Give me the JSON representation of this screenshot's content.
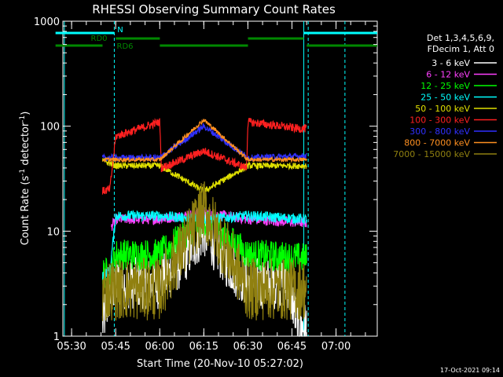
{
  "chart_data": {
    "type": "line",
    "title": "RHESSI Observing Summary Count Rates",
    "xlabel": "Start Time (20-Nov-10 05:27:02)",
    "ylabel_main": "Count Rate (s",
    "ylabel_sup1": "-1",
    "ylabel_mid": " detector",
    "ylabel_sup2": "-1",
    "ylabel_end": ")",
    "y_scale": "log",
    "ylim": [
      1,
      1000
    ],
    "y_ticks": [
      {
        "value": 1,
        "label": "1"
      },
      {
        "value": 10,
        "label": "10"
      },
      {
        "value": 100,
        "label": "100"
      },
      {
        "value": 1000,
        "label": "1000"
      }
    ],
    "x_unit": "minutes after 05:27:02",
    "xlim": [
      0,
      107
    ],
    "x_ticks": [
      {
        "value": 2.97,
        "label": "05:30"
      },
      {
        "value": 17.97,
        "label": "05:45"
      },
      {
        "value": 32.97,
        "label": "06:00"
      },
      {
        "value": 47.97,
        "label": "06:15"
      },
      {
        "value": 62.97,
        "label": "06:30"
      },
      {
        "value": 77.97,
        "label": "06:45"
      },
      {
        "value": 92.97,
        "label": "07:00"
      }
    ],
    "legend": {
      "placement": "right",
      "header1": "Det 1,3,4,5,6,9,",
      "header2": "FDecim 1, Att 0"
    },
    "series": [
      {
        "name": "3 - 6 keV",
        "color": "#ffffff",
        "segments": [
          [
            13.5,
            1.3
          ],
          [
            16,
            2.5
          ],
          [
            18,
            3.2
          ],
          [
            33,
            3.2
          ],
          [
            40,
            5
          ],
          [
            48,
            10
          ],
          [
            56,
            5
          ],
          [
            63,
            3.2
          ],
          [
            77,
            3.2
          ],
          [
            80,
            1.2
          ],
          [
            83,
            1.2
          ]
        ],
        "noise": 0.25
      },
      {
        "name": "6 - 12 keV",
        "color": "#ff40ff",
        "segments": [
          [
            16.5,
            11
          ],
          [
            18,
            13
          ],
          [
            33,
            13
          ],
          [
            48,
            15
          ],
          [
            63,
            13
          ],
          [
            83,
            12
          ]
        ],
        "noise": 0.05
      },
      {
        "name": "12 - 25 keV",
        "color": "#00ff00",
        "segments": [
          [
            13.5,
            4
          ],
          [
            16,
            4
          ],
          [
            18,
            6
          ],
          [
            33,
            6
          ],
          [
            48,
            13
          ],
          [
            63,
            6
          ],
          [
            83,
            5.5
          ]
        ],
        "noise": 0.15
      },
      {
        "name": "25 - 50 keV",
        "color": "#00ffff",
        "segments": [
          [
            13.5,
            3.8
          ],
          [
            16,
            4.2
          ],
          [
            18,
            14
          ],
          [
            33,
            14
          ],
          [
            48,
            13
          ],
          [
            63,
            14
          ],
          [
            83,
            13
          ]
        ],
        "noise": 0.05
      },
      {
        "name": "50 - 100 keV",
        "color": "#e0e000",
        "segments": [
          [
            13.5,
            47
          ],
          [
            18,
            42
          ],
          [
            33,
            42
          ],
          [
            48,
            24
          ],
          [
            63,
            42
          ],
          [
            83,
            42
          ]
        ],
        "noise": 0.03
      },
      {
        "name": "100 - 300 keV",
        "color": "#ff2020",
        "segments": [
          [
            13.5,
            24
          ],
          [
            16,
            25
          ],
          [
            18,
            80
          ],
          [
            33,
            110
          ],
          [
            33.5,
            40
          ],
          [
            48,
            58
          ],
          [
            62.5,
            40
          ],
          [
            63,
            110
          ],
          [
            80,
            95
          ],
          [
            83,
            95
          ]
        ],
        "noise": 0.04
      },
      {
        "name": "300 - 800 keV",
        "color": "#3030ff",
        "segments": [
          [
            13.5,
            50
          ],
          [
            18,
            50
          ],
          [
            33,
            50
          ],
          [
            48,
            100
          ],
          [
            63,
            50
          ],
          [
            83,
            52
          ]
        ],
        "noise": 0.03
      },
      {
        "name": "800 - 7000 keV",
        "color": "#ff9020",
        "segments": [
          [
            13.5,
            48
          ],
          [
            18,
            48
          ],
          [
            33,
            48
          ],
          [
            48,
            115
          ],
          [
            63,
            48
          ],
          [
            83,
            48
          ]
        ],
        "noise": 0.02
      },
      {
        "name": "7000 - 15000 keV",
        "color": "#908010",
        "segments": [
          [
            13.5,
            2.6
          ],
          [
            16,
            2.8
          ],
          [
            18,
            2.8
          ],
          [
            33,
            2.8
          ],
          [
            48,
            16
          ],
          [
            63,
            2.8
          ],
          [
            83,
            2.8
          ]
        ],
        "noise": 0.3
      }
    ],
    "flag_bars": [
      {
        "label": "N",
        "color": "#00ffff",
        "label_x": 18,
        "label_pos": "top",
        "segments": [
          [
            -2.5,
            17.5
          ],
          [
            82,
            107
          ]
        ],
        "level": 1
      },
      {
        "label": "RD0",
        "color": "#008800",
        "label_x": 9.5,
        "label_pos": "left",
        "segments": [
          [
            18,
            33
          ],
          [
            63,
            82
          ]
        ],
        "level": 2
      },
      {
        "label": "RD6",
        "color": "#008800",
        "label_x": 17.8,
        "label_pos": "right",
        "segments": [
          [
            -2.5,
            13.5
          ],
          [
            33,
            63
          ],
          [
            83,
            107
          ]
        ],
        "level": 3
      }
    ],
    "vlines": [
      {
        "x": 0.5,
        "color": "#00ffff",
        "style": "solid"
      },
      {
        "x": 17.5,
        "color": "#00ffff",
        "style": "dashed"
      },
      {
        "x": 82,
        "color": "#00ffff",
        "style": "solid"
      },
      {
        "x": 83.5,
        "color": "#00ffff",
        "style": "dashed"
      },
      {
        "x": 96,
        "color": "#00ffff",
        "style": "dashed"
      }
    ]
  },
  "timestamp": "17-Oct-2021 09:14"
}
